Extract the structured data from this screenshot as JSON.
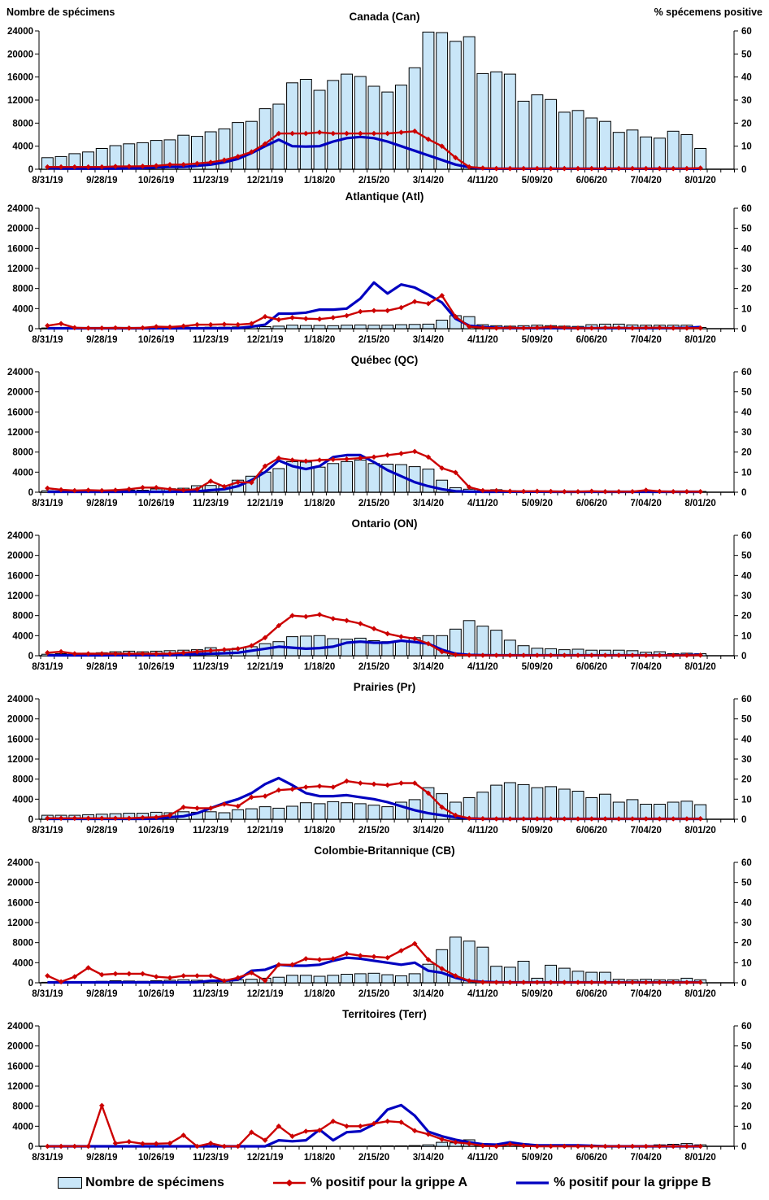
{
  "header": {
    "left_axis_title": "Nombre de spécimens",
    "right_axis_title": "% spécemens positive"
  },
  "axes": {
    "left_ticks": [
      0,
      4000,
      8000,
      12000,
      16000,
      20000,
      24000
    ],
    "right_ticks": [
      0,
      10,
      20,
      30,
      40,
      50,
      60
    ],
    "left_range": [
      0,
      24000
    ],
    "right_range": [
      0,
      60
    ],
    "x_labels": [
      "8/31/19",
      "9/28/19",
      "10/26/19",
      "11/23/19",
      "12/21/19",
      "1/18/20",
      "2/15/20",
      "3/14/20",
      "4/11/20",
      "5/09/20",
      "6/06/20",
      "7/04/20",
      "8/01/20"
    ]
  },
  "colors": {
    "bar_fill": "#C9E6F8",
    "bar_border": "#000000",
    "grippe_a": "#CC0000",
    "grippe_b": "#0000C0",
    "axis": "#000000"
  },
  "legend": {
    "specimens": "Nombre de spécimens",
    "grippe_a": "% positif pour la grippe A",
    "grippe_b": "% positif pour la grippe B"
  },
  "chart_data": [
    {
      "id": "canada",
      "type": "bar",
      "title": "Canada (Can)",
      "x_weekly_start": "8/31/19",
      "x_weekly_end": "8/01/20",
      "ylim_left": [
        0,
        24000
      ],
      "ylim_right": [
        0,
        60
      ],
      "bars_nombre_de_specimens": [
        2000,
        2200,
        2700,
        3000,
        3600,
        4100,
        4400,
        4600,
        5000,
        5100,
        5900,
        5700,
        6500,
        7000,
        8100,
        8300,
        10500,
        11300,
        15000,
        15600,
        13700,
        15400,
        16500,
        16100,
        14400,
        13400,
        14600,
        17600,
        23800,
        23700,
        22200,
        23000,
        16600,
        16900,
        16500,
        11800,
        12900,
        12100,
        9900,
        10200,
        8900,
        8300,
        6400,
        6800,
        5600,
        5400,
        6600,
        6000,
        3600
      ],
      "pct_grippe_a": [
        1,
        1,
        1,
        1,
        1,
        1.2,
        1.2,
        1.3,
        1.5,
        2,
        2,
        2.5,
        3,
        4,
        5.5,
        7.5,
        11,
        15.5,
        15.5,
        15.5,
        16,
        15.5,
        15.5,
        15.5,
        15.5,
        15.5,
        16,
        16.5,
        13,
        10,
        5,
        1,
        0.5,
        0.3,
        0.3,
        0.3,
        0.3,
        0.3,
        0.3,
        0.3,
        0.3,
        0.3,
        0.3,
        0.3,
        0.3,
        0.3,
        0.3,
        0.3,
        0.5
      ],
      "pct_grippe_b": [
        0.5,
        0.3,
        0.3,
        0.3,
        0.3,
        0.3,
        0.4,
        0.5,
        0.8,
        1,
        1,
        1.5,
        2,
        3,
        4.5,
        7,
        10,
        12.8,
        10,
        9.8,
        10,
        12,
        13.5,
        14,
        13.5,
        12,
        10,
        8,
        6,
        4,
        2,
        0.8,
        0.3,
        0.2,
        0.2,
        0.2,
        0.2,
        0.2,
        0.2,
        0.2,
        0.2,
        0.2,
        0.2,
        0.2,
        0.2,
        0.2,
        0.2,
        0.2,
        0.2
      ]
    },
    {
      "id": "atlantique",
      "type": "bar",
      "title": "Atlantique (Atl)",
      "x_weekly_start": "8/31/19",
      "x_weekly_end": "8/01/20",
      "ylim_left": [
        0,
        24000
      ],
      "ylim_right": [
        0,
        60
      ],
      "bars_nombre_de_specimens": [
        150,
        150,
        100,
        150,
        150,
        150,
        200,
        200,
        250,
        250,
        300,
        250,
        300,
        300,
        350,
        400,
        400,
        500,
        700,
        650,
        650,
        600,
        700,
        750,
        700,
        700,
        800,
        850,
        900,
        1700,
        2600,
        2400,
        800,
        600,
        500,
        600,
        700,
        600,
        500,
        450,
        800,
        900,
        900,
        750,
        700,
        700,
        700,
        700,
        250
      ],
      "pct_grippe_a": [
        1.5,
        2.5,
        0.5,
        0.3,
        0.3,
        0.4,
        0.3,
        0.4,
        1,
        0.8,
        1.3,
        2,
        2,
        2.2,
        2,
        2.5,
        6,
        4.5,
        5.5,
        5,
        4.8,
        5.5,
        6.5,
        8.5,
        9,
        9,
        10.5,
        13.5,
        12.5,
        16.5,
        6,
        1,
        0.5,
        0.3,
        0.5,
        0.3,
        0.5,
        0.8,
        0.5,
        0.3,
        0.3,
        0.5,
        0.5,
        0.3,
        0.5,
        0.5,
        0.3,
        0.3,
        0.3
      ],
      "pct_grippe_b": [
        0.2,
        0.2,
        0.2,
        0.2,
        0.2,
        0.2,
        0.2,
        0.2,
        0.2,
        0.2,
        0.2,
        0.2,
        0.2,
        0.2,
        0.3,
        1,
        2,
        7.5,
        7.5,
        8,
        9.5,
        9.5,
        10,
        15,
        23,
        17.5,
        22,
        20.5,
        17,
        13,
        5,
        1.5,
        0.8,
        0.5,
        0.3,
        0.3,
        0.3,
        0.3,
        0.3,
        0.3,
        0.3,
        0.3,
        0.3,
        0.3,
        0.3,
        0.3,
        0.3,
        0.4,
        0.8
      ]
    },
    {
      "id": "quebec",
      "type": "bar",
      "title": "Québec (QC)",
      "x_weekly_start": "8/31/19",
      "x_weekly_end": "8/01/20",
      "ylim_left": [
        0,
        24000
      ],
      "ylim_right": [
        0,
        60
      ],
      "bars_nombre_de_specimens": [
        300,
        150,
        150,
        350,
        350,
        450,
        400,
        400,
        650,
        700,
        800,
        1300,
        1350,
        1300,
        2400,
        3200,
        4000,
        4700,
        6100,
        6000,
        5000,
        5700,
        6100,
        6400,
        5700,
        5600,
        5500,
        5100,
        4600,
        2400,
        900,
        600,
        300,
        500,
        300,
        200,
        150,
        150,
        150,
        150,
        150,
        150,
        100,
        100,
        150,
        150,
        100,
        150,
        150
      ],
      "pct_grippe_a": [
        2,
        1.2,
        0.8,
        1,
        0.8,
        1,
        1.5,
        2.3,
        2.3,
        1.5,
        1,
        1.5,
        5.5,
        2.8,
        5,
        4.8,
        13,
        17,
        16,
        15.5,
        16,
        16.3,
        16.5,
        17,
        17.5,
        18.5,
        19.3,
        20.3,
        17.5,
        12,
        9.8,
        2.5,
        0.8,
        0.8,
        0.5,
        0.4,
        0.5,
        0.4,
        0.3,
        0.3,
        0.5,
        0.3,
        0.3,
        0.3,
        1,
        0.4,
        0.3,
        0.3,
        0.3
      ],
      "pct_grippe_b": [
        0.2,
        0.2,
        0.2,
        0.2,
        0.2,
        0.2,
        0.2,
        0.2,
        0.2,
        0.2,
        0.3,
        0.5,
        1,
        1.5,
        3,
        6,
        10,
        15.8,
        13,
        11.5,
        13,
        17.5,
        18.5,
        18.5,
        15,
        11,
        8,
        5,
        3,
        1.5,
        0.5,
        0.3,
        0.2,
        0.2,
        0.3,
        0.2,
        0.3,
        0.2,
        0.2,
        0.2,
        0.2,
        0.2,
        0.2,
        0.2,
        0.2,
        0.2,
        0.2,
        0.2,
        0.2
      ]
    },
    {
      "id": "ontario",
      "type": "bar",
      "title": "Ontario (ON)",
      "x_weekly_start": "8/31/19",
      "x_weekly_end": "8/01/20",
      "ylim_left": [
        0,
        24000
      ],
      "ylim_right": [
        0,
        60
      ],
      "bars_nombre_de_specimens": [
        300,
        400,
        500,
        500,
        600,
        800,
        900,
        800,
        900,
        1000,
        1100,
        1200,
        1600,
        1100,
        1500,
        1800,
        2400,
        2800,
        3800,
        3900,
        4000,
        3400,
        3300,
        3500,
        3000,
        2800,
        3000,
        3600,
        4000,
        4000,
        5300,
        7000,
        5900,
        5100,
        3100,
        2000,
        1500,
        1400,
        1200,
        1300,
        1100,
        1100,
        1100,
        1000,
        700,
        800,
        400,
        500,
        400
      ],
      "pct_grippe_a": [
        1.5,
        2,
        1,
        1,
        1,
        1,
        1,
        1,
        1,
        1,
        1.5,
        2,
        2.5,
        3,
        3.5,
        5,
        9,
        15,
        20,
        19.5,
        20.5,
        18.5,
        17.5,
        16,
        13.5,
        11,
        9.5,
        8.5,
        6,
        2,
        0.5,
        0.3,
        0.2,
        0.2,
        0.2,
        0.2,
        0.2,
        0.2,
        0.2,
        0.2,
        0.2,
        0.2,
        0.2,
        0.2,
        0.2,
        0.2,
        0.2,
        0.2,
        0.3
      ],
      "pct_grippe_b": [
        0.2,
        0.2,
        0.2,
        0.2,
        0.2,
        0.3,
        0.3,
        0.3,
        0.3,
        0.3,
        0.5,
        0.8,
        1,
        1.2,
        1.5,
        2.5,
        3.5,
        4.5,
        4,
        3.5,
        3.8,
        4.5,
        6.5,
        7,
        6.5,
        6.5,
        7.5,
        6.8,
        6,
        3,
        1,
        0.4,
        0.3,
        0.2,
        0.2,
        0.2,
        0.2,
        0.2,
        0.2,
        0.2,
        0.2,
        0.2,
        0.2,
        0.2,
        0.2,
        0.2,
        0.2,
        0.3,
        0.5
      ]
    },
    {
      "id": "prairies",
      "type": "bar",
      "title": "Prairies (Pr)",
      "x_weekly_start": "8/31/19",
      "x_weekly_end": "8/01/20",
      "ylim_left": [
        0,
        24000
      ],
      "ylim_right": [
        0,
        60
      ],
      "bars_nombre_de_specimens": [
        800,
        800,
        800,
        900,
        1000,
        1100,
        1200,
        1200,
        1400,
        1300,
        1500,
        1400,
        1500,
        1300,
        1900,
        2100,
        2500,
        2200,
        2600,
        3300,
        3100,
        3500,
        3300,
        3100,
        2800,
        2500,
        3400,
        3900,
        6300,
        5100,
        3400,
        4300,
        5400,
        6800,
        7300,
        6900,
        6300,
        6500,
        6000,
        5600,
        4300,
        5000,
        3400,
        3900,
        3000,
        3000,
        3400,
        3600,
        2900
      ],
      "pct_grippe_a": [
        0.5,
        0.5,
        0.5,
        0.5,
        0.5,
        0.5,
        0.5,
        0.8,
        1,
        2,
        6,
        5.5,
        5.5,
        7.5,
        6.5,
        11,
        11.5,
        14.5,
        15,
        16,
        16.5,
        16,
        19,
        18,
        17.5,
        17,
        18,
        18,
        13,
        6,
        2,
        0.5,
        0.3,
        0.2,
        0.2,
        0.2,
        0.2,
        0.2,
        0.2,
        0.2,
        0.2,
        0.2,
        0.2,
        0.2,
        0.2,
        0.2,
        0.2,
        0.2,
        0.3
      ],
      "pct_grippe_b": [
        0.2,
        0.2,
        0.2,
        0.2,
        0.2,
        0.2,
        0.2,
        0.2,
        0.3,
        1,
        1.5,
        3,
        5.5,
        8,
        10,
        13,
        17.5,
        20.5,
        17,
        13,
        11.5,
        11.5,
        12,
        11,
        10,
        8.5,
        6.5,
        4.5,
        3,
        2,
        1,
        0.4,
        0.2,
        0.2,
        0.2,
        0.2,
        0.2,
        0.2,
        0.2,
        0.2,
        0.2,
        0.2,
        0.2,
        0.2,
        0.2,
        0.2,
        0.2,
        0.2,
        0.2
      ]
    },
    {
      "id": "colombie-britannique",
      "type": "bar",
      "title": "Colombie-Britannique (CB)",
      "x_weekly_start": "8/31/19",
      "x_weekly_end": "8/01/20",
      "ylim_left": [
        0,
        24000
      ],
      "ylim_right": [
        0,
        60
      ],
      "bars_nombre_de_specimens": [
        100,
        150,
        200,
        250,
        300,
        400,
        350,
        300,
        400,
        500,
        600,
        500,
        400,
        500,
        600,
        700,
        900,
        1100,
        1500,
        1500,
        1300,
        1500,
        1700,
        1800,
        1900,
        1600,
        1400,
        1800,
        3700,
        6600,
        9100,
        8300,
        7100,
        3300,
        3100,
        4300,
        900,
        3500,
        2900,
        2300,
        2100,
        2100,
        700,
        600,
        700,
        600,
        600,
        900,
        600
      ],
      "pct_grippe_a": [
        3.5,
        0.5,
        3,
        7.5,
        4,
        4.5,
        4.5,
        4.5,
        3,
        2.5,
        3.5,
        3.5,
        3.5,
        1,
        2.5,
        5,
        1,
        9,
        9,
        12,
        11.5,
        12,
        14.5,
        13.5,
        13,
        12.5,
        16,
        19.5,
        11.5,
        7,
        3.5,
        1,
        0.3,
        0.2,
        0.2,
        0.2,
        0.2,
        0.2,
        0.2,
        0.2,
        0.2,
        0.2,
        0.2,
        0.2,
        0.2,
        0.2,
        0.2,
        0.2,
        0.2
      ],
      "pct_grippe_b": [
        0.2,
        0.2,
        0.2,
        0.2,
        0.2,
        0.2,
        0.2,
        0.2,
        0.2,
        0.2,
        0.2,
        0.3,
        1,
        1,
        1.5,
        6,
        6.5,
        9,
        8.5,
        8.5,
        9,
        11,
        12.5,
        12,
        11,
        10,
        9,
        10,
        6,
        5,
        2.5,
        1,
        0.5,
        0.3,
        0.2,
        0.2,
        0.2,
        0.2,
        0.2,
        0.2,
        0.2,
        0.2,
        0.2,
        0.2,
        0.2,
        0.2,
        0.2,
        0.2,
        0.2
      ]
    },
    {
      "id": "territoires",
      "type": "bar",
      "title": "Territoires (Terr)",
      "x_weekly_start": "8/31/19",
      "x_weekly_end": "8/01/20",
      "ylim_left": [
        0,
        24000
      ],
      "ylim_right": [
        0,
        60
      ],
      "bars_nombre_de_specimens": [
        0,
        0,
        0,
        0,
        50,
        0,
        0,
        0,
        0,
        0,
        50,
        0,
        0,
        0,
        0,
        50,
        0,
        0,
        0,
        50,
        50,
        0,
        50,
        50,
        100,
        100,
        100,
        150,
        300,
        800,
        700,
        1300,
        250,
        200,
        600,
        500,
        300,
        200,
        150,
        100,
        100,
        100,
        100,
        100,
        100,
        300,
        400,
        550,
        300
      ],
      "pct_grippe_a": [
        0,
        0,
        0,
        0,
        20.3,
        1.5,
        2.3,
        1.3,
        1.3,
        1.5,
        5.5,
        0,
        1.5,
        0,
        0,
        7,
        3,
        10,
        5,
        7.5,
        8,
        12.5,
        10,
        10,
        11.3,
        12.5,
        12,
        7.8,
        6,
        3.5,
        2,
        1.3,
        0.3,
        0,
        1,
        0.3,
        0,
        0,
        0,
        0,
        0,
        0,
        0,
        0,
        0,
        0,
        0,
        0,
        0
      ],
      "pct_grippe_b": [
        0,
        0,
        0,
        0,
        0,
        0,
        0,
        0,
        0,
        0,
        0,
        0,
        0,
        0,
        0,
        0,
        0,
        3,
        2.5,
        3,
        8.3,
        3,
        7,
        7.5,
        11,
        18.3,
        20.5,
        15.3,
        7.3,
        5,
        3.3,
        2,
        1,
        0.8,
        2,
        1,
        0.5,
        0.5,
        0.5,
        0.5,
        0.3,
        0,
        0,
        0,
        0,
        0,
        0,
        0,
        0
      ]
    }
  ]
}
